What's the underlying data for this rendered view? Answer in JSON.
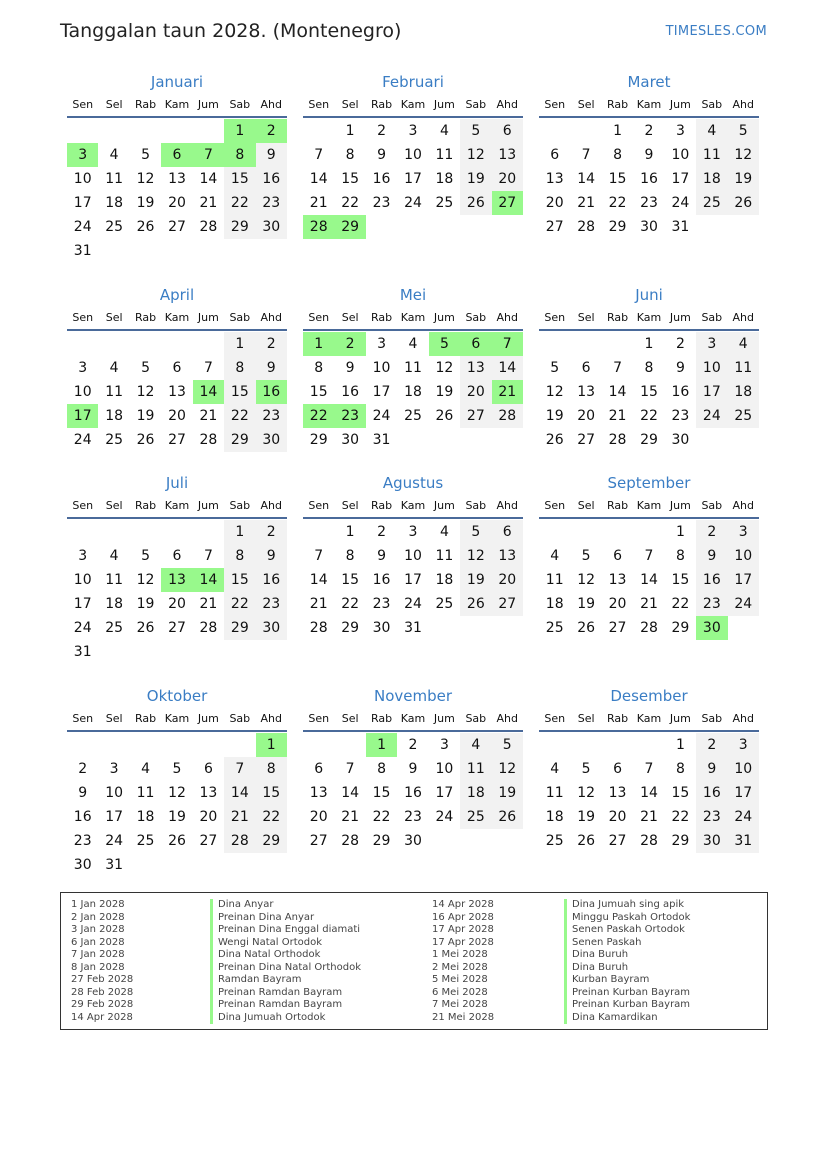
{
  "header": {
    "title": "Tanggalan taun 2028. (Montenegro)",
    "brand": "TIMESLES.COM"
  },
  "weekdays": [
    "Sen",
    "Sel",
    "Rab",
    "Kam",
    "Jum",
    "Sab",
    "Ahd"
  ],
  "colors": {
    "accent": "#3a7dc4",
    "holiday": "#98f98c",
    "weekend": "#f2f2f2"
  },
  "months": [
    {
      "name": "Januari",
      "offset": 5,
      "days": 31,
      "holidays": [
        1,
        2,
        3,
        6,
        7,
        8
      ]
    },
    {
      "name": "Februari",
      "offset": 1,
      "days": 29,
      "holidays": [
        27,
        28,
        29
      ]
    },
    {
      "name": "Maret",
      "offset": 2,
      "days": 31,
      "holidays": []
    },
    {
      "name": "April",
      "offset": 5,
      "days": 30,
      "holidays": [
        14,
        16,
        17
      ]
    },
    {
      "name": "Mei",
      "offset": 0,
      "days": 31,
      "holidays": [
        1,
        2,
        5,
        6,
        7,
        21,
        22,
        23
      ]
    },
    {
      "name": "Juni",
      "offset": 3,
      "days": 30,
      "holidays": []
    },
    {
      "name": "Juli",
      "offset": 5,
      "days": 31,
      "holidays": [
        13,
        14
      ]
    },
    {
      "name": "Agustus",
      "offset": 1,
      "days": 31,
      "holidays": []
    },
    {
      "name": "September",
      "offset": 4,
      "days": 30,
      "holidays": [
        30
      ]
    },
    {
      "name": "Oktober",
      "offset": 6,
      "days": 31,
      "holidays": [
        1
      ]
    },
    {
      "name": "November",
      "offset": 2,
      "days": 30,
      "holidays": [
        1
      ]
    },
    {
      "name": "Desember",
      "offset": 4,
      "days": 31,
      "holidays": []
    }
  ],
  "holiday_list": [
    {
      "date": "1 Jan 2028",
      "name": "Dina Anyar"
    },
    {
      "date": "2 Jan 2028",
      "name": "Preinan Dina Anyar"
    },
    {
      "date": "3 Jan 2028",
      "name": "Preinan Dina Enggal diamati"
    },
    {
      "date": "6 Jan 2028",
      "name": "Wengi Natal Ortodok"
    },
    {
      "date": "7 Jan 2028",
      "name": "Dina Natal Orthodok"
    },
    {
      "date": "8 Jan 2028",
      "name": "Preinan Dina Natal Orthodok"
    },
    {
      "date": "27 Feb 2028",
      "name": "Ramdan Bayram"
    },
    {
      "date": "28 Feb 2028",
      "name": "Preinan Ramdan Bayram"
    },
    {
      "date": "29 Feb 2028",
      "name": "Preinan Ramdan Bayram"
    },
    {
      "date": "14 Apr 2028",
      "name": "Dina Jumuah Ortodok"
    },
    {
      "date": "14 Apr 2028",
      "name": "Dina Jumuah sing apik"
    },
    {
      "date": "16 Apr 2028",
      "name": "Minggu Paskah Ortodok"
    },
    {
      "date": "17 Apr 2028",
      "name": "Senen Paskah Ortodok"
    },
    {
      "date": "17 Apr 2028",
      "name": "Senen Paskah"
    },
    {
      "date": "1 Mei 2028",
      "name": "Dina Buruh"
    },
    {
      "date": "2 Mei 2028",
      "name": "Dina Buruh"
    },
    {
      "date": "5 Mei 2028",
      "name": "Kurban Bayram"
    },
    {
      "date": "6 Mei 2028",
      "name": "Preinan Kurban Bayram"
    },
    {
      "date": "7 Mei 2028",
      "name": "Preinan Kurban Bayram"
    },
    {
      "date": "21 Mei 2028",
      "name": "Dina Kamardikan"
    }
  ]
}
